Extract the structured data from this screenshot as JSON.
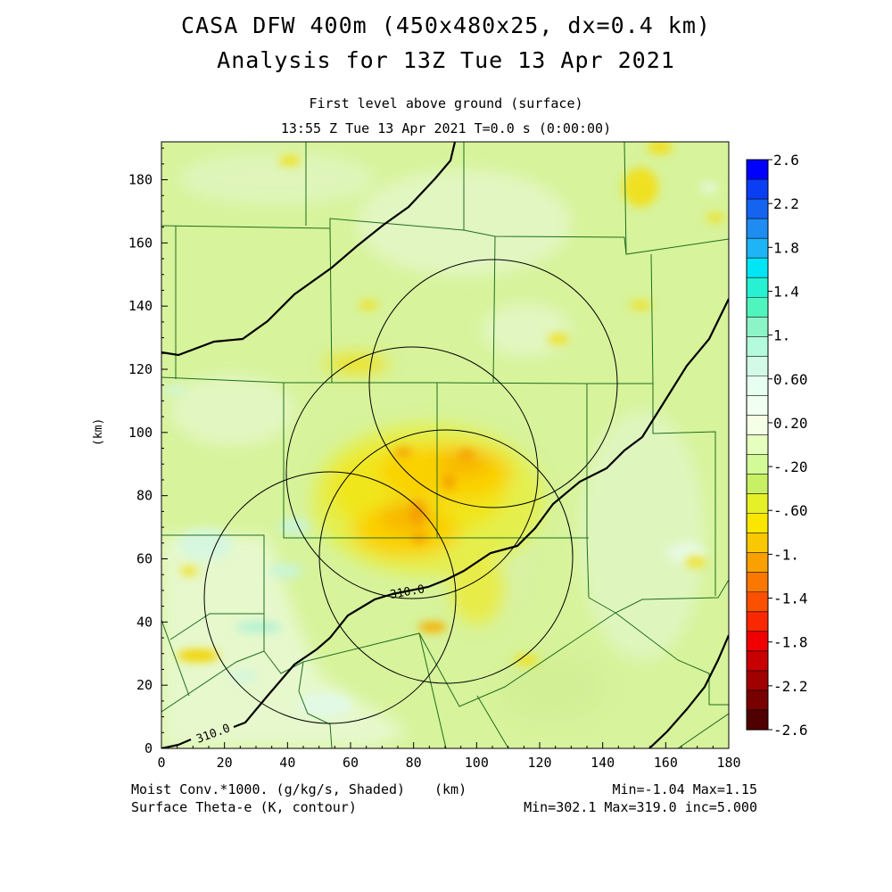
{
  "header": {
    "title_line1": "CASA DFW 400m (450x480x25, dx=0.4 km)",
    "title_line2": "Analysis for 13Z Tue 13 Apr 2021",
    "subtitle_level": "First level above ground (surface)",
    "subtitle_time": "13:55 Z Tue 13 Apr 2021   T=0.0 s (0:00:00)"
  },
  "axes": {
    "x_ticks": [
      "0",
      "20",
      "40",
      "60",
      "80",
      "100",
      "120",
      "140",
      "160",
      "180"
    ],
    "y_ticks": [
      "0",
      "20",
      "40",
      "60",
      "80",
      "100",
      "120",
      "140",
      "160",
      "180"
    ],
    "y_label": "(km)",
    "x_label": "(km)",
    "x_range": [
      0,
      180
    ],
    "y_range": [
      0,
      192
    ]
  },
  "colorbar": {
    "labels": [
      "2.6",
      "2.2",
      "1.8",
      "1.4",
      "1.",
      "0.60",
      "0.20",
      "-.20",
      "-.60",
      "-1.",
      "-1.4",
      "-1.8",
      "-2.2",
      "-2.6"
    ],
    "colors": [
      "#0000ff",
      "#0a3ef5",
      "#1464f0",
      "#1e8cf0",
      "#1eb4f5",
      "#00e6f5",
      "#28f0d2",
      "#50f5be",
      "#8cf5c8",
      "#b4fadc",
      "#d2fae6",
      "#e6fff0",
      "#f0fff0",
      "#f5ffe6",
      "#e6ffbe",
      "#d2fa96",
      "#c8f064",
      "#e6f028",
      "#fae600",
      "#fac800",
      "#faa000",
      "#fa7800",
      "#fa5000",
      "#fa2800",
      "#f00000",
      "#c80000",
      "#a00000",
      "#780000",
      "#500000"
    ]
  },
  "footer": {
    "field_shaded": "Moist Conv.*1000. (g/kg/s, Shaded)",
    "field_contour": "Surface Theta-e (K, contour)",
    "x_unit": "(km)",
    "shaded_range": "Min=-1.04 Max=1.15",
    "contour_range": "Min=302.1 Max=319.0 inc=5.000"
  },
  "map": {
    "contour_labels": [
      "310.0",
      "310.0"
    ],
    "colors": {
      "background_field": "#d7f39b",
      "county_lines": "#1f6e1f",
      "contour": "#000000",
      "radar_rings": "#000000"
    }
  }
}
